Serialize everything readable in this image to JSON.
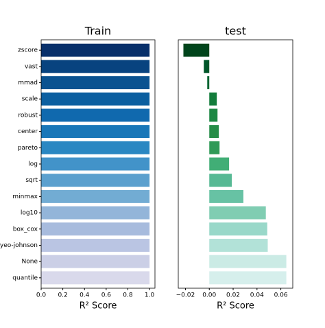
{
  "chart_data": [
    {
      "type": "bar",
      "orientation": "horizontal",
      "title": "Train",
      "xlabel": "R² Score",
      "categories": [
        "zscore",
        "vast",
        "mmad",
        "scale",
        "robust",
        "center",
        "pareto",
        "log",
        "sqrt",
        "minmax",
        "log10",
        "box_cox",
        "yeo-johnson",
        "None",
        "quantile"
      ],
      "values": [
        1,
        1,
        1,
        1,
        1,
        1,
        1,
        1,
        1,
        1,
        1,
        1,
        1,
        1,
        1
      ],
      "colors": [
        "#08306b",
        "#08437f",
        "#0a5290",
        "#0c5fa0",
        "#1069ae",
        "#1977b8",
        "#2a87c2",
        "#4293c9",
        "#5ba0ce",
        "#72acd3",
        "#93b5d9",
        "#a7bbdd",
        "#bac5e3",
        "#cbcfe6",
        "#d9d9eb"
      ],
      "xlim": [
        0,
        1.05
      ],
      "xticks": [
        {
          "value": 0,
          "label": "0.0"
        },
        0.2,
        0.4,
        0.6,
        0.8,
        {
          "value": 1,
          "label": "1.0"
        }
      ]
    },
    {
      "type": "bar",
      "orientation": "horizontal",
      "title": "test",
      "xlabel": "R² Score",
      "values": [
        -0.0217,
        -0.0046,
        -0.0017,
        0.0063,
        0.0069,
        0.008,
        0.0086,
        0.0166,
        0.0189,
        0.0286,
        0.0474,
        0.0486,
        0.049,
        0.0646,
        0.0646
      ],
      "colors": [
        "#00441b",
        "#00562a",
        "#006431",
        "#137c3b",
        "#1d8843",
        "#268d48",
        "#2f9a57",
        "#41ae76",
        "#57b994",
        "#67c2a4",
        "#80cdb2",
        "#99d8c9",
        "#b2e2d8",
        "#cbebe5",
        "#d6efec"
      ],
      "xlim": [
        -0.026,
        0.07
      ],
      "xticks": [
        {
          "value": -0.02,
          "label": "−0.02"
        },
        {
          "value": 0,
          "label": "0.00"
        },
        0.02,
        0.04,
        0.06
      ]
    }
  ]
}
